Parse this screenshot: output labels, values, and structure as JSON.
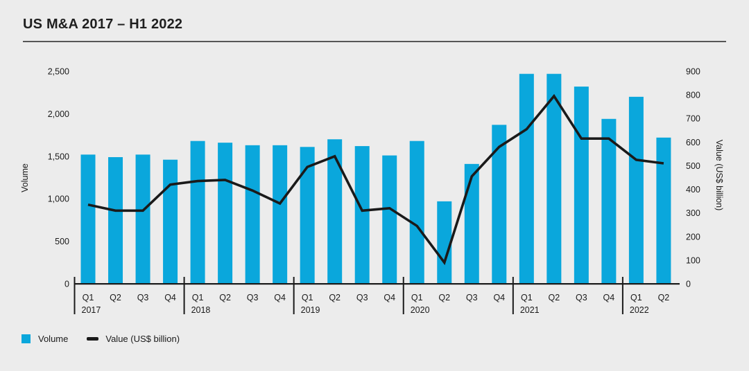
{
  "title": "US M&A 2017 – H1 2022",
  "colors": {
    "background": "#ececec",
    "bar": "#0aa7dc",
    "line": "#1a1a1a",
    "text": "#1a1a1a",
    "title_rule": "#565656"
  },
  "chart_data": {
    "type": "combo",
    "categories": [
      "Q1 2017",
      "Q2 2017",
      "Q3 2017",
      "Q4 2017",
      "Q1 2018",
      "Q2 2018",
      "Q3 2018",
      "Q4 2018",
      "Q1 2019",
      "Q2 2019",
      "Q3 2019",
      "Q4 2019",
      "Q1 2020",
      "Q2 2020",
      "Q3 2020",
      "Q4 2020",
      "Q1 2021",
      "Q2 2021",
      "Q3 2021",
      "Q4 2021",
      "Q1 2022",
      "Q2 2022"
    ],
    "series": [
      {
        "name": "Volume",
        "type": "bar",
        "axis": "left",
        "values": [
          1520,
          1490,
          1520,
          1460,
          1680,
          1660,
          1630,
          1630,
          1610,
          1700,
          1620,
          1510,
          1680,
          970,
          1410,
          1870,
          2470,
          2470,
          2320,
          1940,
          2200,
          1720
        ]
      },
      {
        "name": "Value (US$ billion)",
        "type": "line",
        "axis": "right",
        "values": [
          335,
          310,
          310,
          420,
          435,
          440,
          395,
          340,
          495,
          540,
          310,
          320,
          245,
          90,
          455,
          580,
          655,
          795,
          615,
          615,
          525,
          510
        ]
      }
    ],
    "title": "US M&A 2017 – H1 2022",
    "left_axis": {
      "label": "Volume",
      "min": 0,
      "max": 2500,
      "ticks": [
        0,
        500,
        1000,
        1500,
        2000,
        2500
      ]
    },
    "right_axis": {
      "label": "Value (US$ billion)",
      "min": 0,
      "max": 900,
      "ticks": [
        0,
        100,
        200,
        300,
        400,
        500,
        600,
        700,
        800,
        900
      ]
    },
    "grid": false,
    "legend_position": "bottom-left",
    "legend": [
      {
        "label": "Volume",
        "marker": "square"
      },
      {
        "label": "Value (US$ billion)",
        "marker": "line"
      }
    ],
    "year_labels": [
      "2017",
      "2018",
      "2019",
      "2020",
      "2021",
      "2022"
    ]
  }
}
